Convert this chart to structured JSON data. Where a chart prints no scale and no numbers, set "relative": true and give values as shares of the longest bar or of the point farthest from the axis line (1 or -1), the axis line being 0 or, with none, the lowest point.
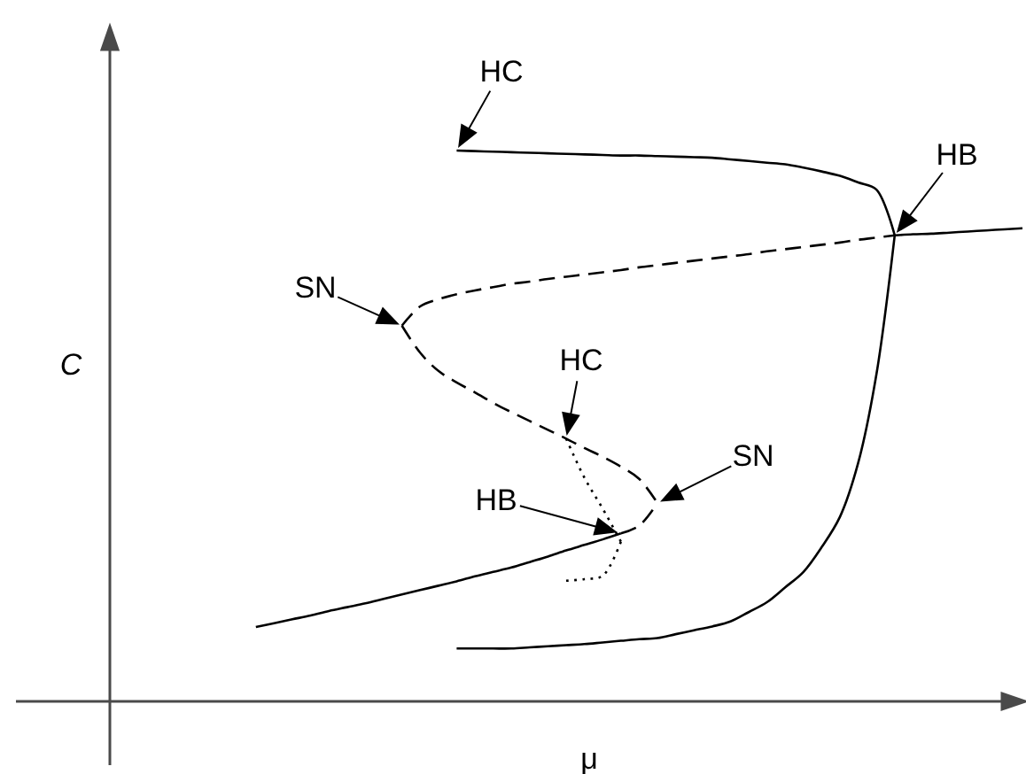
{
  "chart_data": {
    "type": "line",
    "relative": true,
    "xlabel": "μ",
    "ylabel": "C",
    "categories": [
      null,
      null,
      null,
      null,
      null,
      null,
      null,
      null,
      null,
      null,
      null,
      null,
      null,
      null,
      null,
      null,
      null,
      null,
      null,
      null,
      null,
      null,
      null,
      null,
      null,
      null,
      null,
      null,
      null,
      null,
      null,
      null,
      null,
      null,
      null,
      null,
      null,
      null,
      null,
      null,
      null,
      null,
      null,
      null,
      null,
      null,
      null,
      null,
      null,
      null,
      null
    ],
    "series": [
      {
        "color": "#000000",
        "line_style": "solid",
        "values": [
          null,
          null,
          null,
          null,
          null,
          null,
          null,
          null,
          null,
          null,
          null,
          null,
          null,
          null,
          null,
          null,
          null,
          null,
          null,
          1.0,
          0.999,
          0.998,
          0.997,
          0.996,
          0.995,
          0.994,
          0.993,
          0.992,
          0.991,
          0.991,
          0.99,
          0.989,
          0.988,
          0.987,
          0.984,
          0.981,
          0.978,
          0.975,
          0.969,
          0.962,
          0.954,
          0.942,
          0.929,
          0.846,
          null,
          null,
          null,
          null,
          null,
          null,
          null
        ]
      },
      {
        "color": "#000000",
        "line_style": "solid",
        "values": [
          null,
          null,
          null,
          null,
          null,
          null,
          null,
          null,
          null,
          null,
          null,
          null,
          null,
          null,
          null,
          null,
          null,
          null,
          null,
          0.096,
          0.096,
          0.096,
          0.096,
          0.098,
          0.1,
          0.102,
          0.104,
          0.107,
          0.11,
          0.113,
          0.115,
          0.122,
          0.129,
          0.136,
          0.145,
          0.162,
          0.18,
          0.207,
          0.235,
          0.28,
          0.335,
          0.433,
          0.594,
          0.846,
          null,
          null,
          null,
          null,
          null,
          null,
          null
        ]
      },
      {
        "color": "#000000",
        "line_style": "solid",
        "values": [
          null,
          null,
          null,
          null,
          null,
          null,
          null,
          null,
          null,
          null,
          null,
          null,
          null,
          null,
          null,
          null,
          null,
          null,
          null,
          null,
          null,
          null,
          null,
          null,
          null,
          null,
          null,
          null,
          null,
          null,
          null,
          null,
          null,
          null,
          null,
          null,
          null,
          null,
          null,
          null,
          null,
          null,
          null,
          0.846,
          0.848,
          0.849,
          0.851,
          0.853,
          0.855,
          0.857,
          0.859
        ]
      },
      {
        "color": "#000000",
        "line_style": "dashed",
        "values": [
          null,
          null,
          null,
          null,
          null,
          null,
          null,
          null,
          null,
          null,
          null,
          null,
          null,
          null,
          null,
          null,
          0.682,
          0.717,
          0.73,
          0.739,
          0.746,
          0.752,
          0.758,
          0.762,
          0.767,
          0.771,
          0.775,
          0.779,
          0.783,
          0.788,
          0.792,
          0.796,
          0.8,
          0.804,
          0.808,
          0.812,
          0.817,
          0.821,
          0.825,
          0.829,
          0.833,
          0.838,
          0.842,
          0.846,
          null,
          null,
          null,
          null,
          null,
          null,
          null
        ]
      },
      {
        "color": "#000000",
        "line_style": "dashed",
        "values": [
          null,
          null,
          null,
          null,
          null,
          null,
          null,
          null,
          null,
          null,
          null,
          null,
          null,
          null,
          null,
          null,
          0.682,
          0.633,
          0.6,
          0.579,
          0.561,
          0.542,
          0.525,
          0.509,
          0.493,
          0.477,
          0.46,
          0.444,
          0.426,
          0.404,
          0.36,
          null,
          null,
          null,
          null,
          null,
          null,
          null,
          null,
          null,
          null,
          null,
          null,
          null,
          null,
          null,
          null,
          null,
          null,
          null,
          null
        ]
      },
      {
        "color": "#000000",
        "line_style": "dashed",
        "values": [
          null,
          null,
          null,
          null,
          null,
          null,
          null,
          null,
          null,
          null,
          null,
          null,
          null,
          null,
          null,
          null,
          null,
          null,
          null,
          null,
          null,
          null,
          null,
          null,
          null,
          null,
          null,
          null,
          0.305,
          0.319,
          0.36,
          null,
          null,
          null,
          null,
          null,
          null,
          null,
          null,
          null,
          null,
          null,
          null,
          null,
          null,
          null,
          null,
          null,
          null,
          null,
          null
        ]
      },
      {
        "color": "#000000",
        "line_style": "solid",
        "values": [
          null,
          null,
          null,
          null,
          null,
          null,
          null,
          null,
          0.135,
          0.142,
          0.149,
          0.156,
          0.164,
          0.171,
          0.178,
          0.186,
          0.194,
          0.202,
          0.21,
          0.218,
          0.227,
          0.235,
          0.243,
          0.253,
          0.263,
          0.274,
          0.284,
          0.294,
          0.305,
          null,
          null,
          null,
          null,
          null,
          null,
          null,
          null,
          null,
          null,
          null,
          null,
          null,
          null,
          null,
          null,
          null,
          null,
          null,
          null,
          null,
          null
        ]
      },
      {
        "color": "#000000",
        "line_style": "dotted",
        "values": [
          null,
          null,
          null,
          null,
          null,
          null,
          null,
          null,
          null,
          null,
          null,
          null,
          null,
          null,
          null,
          null,
          null,
          null,
          null,
          null,
          null,
          null,
          null,
          null,
          null,
          0.477,
          0.406,
          0.35,
          0.29,
          null,
          null,
          null,
          null,
          null,
          null,
          null,
          null,
          null,
          null,
          null,
          null,
          null,
          null,
          null,
          null,
          null,
          null,
          null,
          null,
          null,
          null
        ]
      },
      {
        "color": "#000000",
        "line_style": "dotted",
        "values": [
          null,
          null,
          null,
          null,
          null,
          null,
          null,
          null,
          null,
          null,
          null,
          null,
          null,
          null,
          null,
          null,
          null,
          null,
          null,
          null,
          null,
          null,
          null,
          null,
          null,
          0.219,
          0.222,
          0.228,
          0.29,
          null,
          null,
          null,
          null,
          null,
          null,
          null,
          null,
          null,
          null,
          null,
          null,
          null,
          null,
          null,
          null,
          null,
          null,
          null,
          null,
          null,
          null
        ]
      }
    ],
    "annotations": [
      {
        "text": "HC",
        "y": 1.0
      },
      {
        "text": "HB",
        "y": 0.846
      },
      "SN",
      {
        "text": "HC",
        "y": 0.477
      },
      "SN",
      "HB"
    ]
  }
}
